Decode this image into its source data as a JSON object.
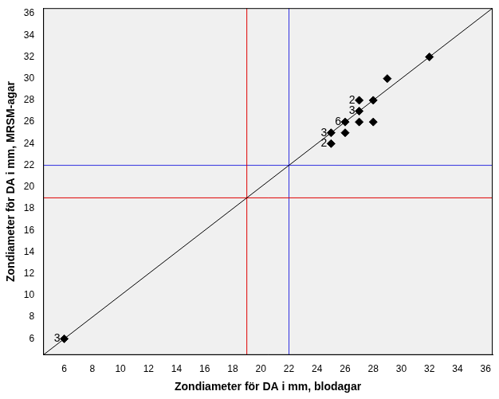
{
  "chart_data": {
    "type": "scatter",
    "x_label": "Zondiameter för DA i mm, blodagar",
    "y_label": "Zondiameter för DA i mm, MRSM-agar",
    "xlim": [
      4.5,
      36.5
    ],
    "ylim": [
      4.5,
      36.5
    ],
    "xticks": [
      6,
      8,
      10,
      12,
      14,
      16,
      18,
      20,
      22,
      24,
      26,
      28,
      30,
      32,
      34,
      36
    ],
    "yticks": [
      6,
      8,
      10,
      12,
      14,
      16,
      18,
      20,
      22,
      24,
      26,
      28,
      30,
      32,
      34,
      36
    ],
    "grid": false,
    "series": [
      {
        "type": "scatter",
        "marker": "diamond",
        "color": "#000000",
        "x": [
          6,
          32,
          29,
          27,
          28,
          27,
          26,
          27,
          28,
          25,
          26,
          25
        ],
        "values": [
          6,
          32,
          30,
          28,
          28,
          27,
          26,
          26,
          26,
          25,
          25,
          24
        ],
        "counts": [
          3,
          null,
          null,
          2,
          null,
          3,
          6,
          null,
          null,
          3,
          null,
          2
        ]
      },
      {
        "type": "line",
        "line_style": "solid",
        "color": "#000000",
        "x": [
          4.5,
          36.5
        ],
        "values": [
          4.5,
          36.5
        ]
      },
      {
        "type": "line",
        "line_style": "solid",
        "color": "#e00000",
        "x": [
          19,
          19
        ],
        "values": [
          4.5,
          36.5
        ]
      },
      {
        "type": "line",
        "line_style": "solid",
        "color": "#e00000",
        "x": [
          4.5,
          36.5
        ],
        "values": [
          19,
          19
        ]
      },
      {
        "type": "line",
        "line_style": "solid",
        "color": "#3030e0",
        "x": [
          22,
          22
        ],
        "values": [
          4.5,
          36.5
        ]
      },
      {
        "type": "line",
        "line_style": "solid",
        "color": "#3030e0",
        "x": [
          4.5,
          36.5
        ],
        "values": [
          22,
          22
        ]
      }
    ]
  }
}
